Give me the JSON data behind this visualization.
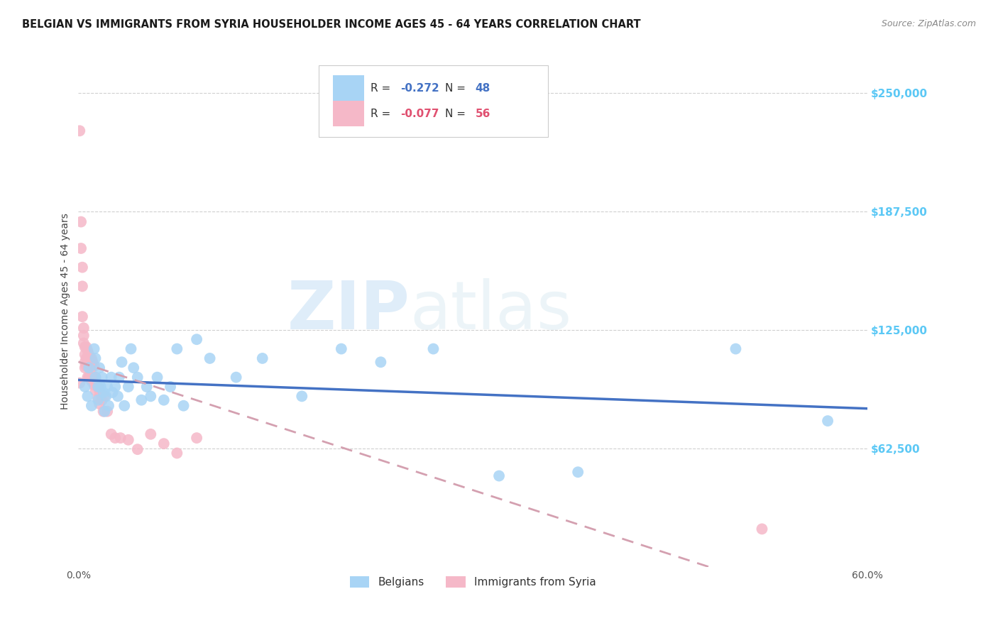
{
  "title": "BELGIAN VS IMMIGRANTS FROM SYRIA HOUSEHOLDER INCOME AGES 45 - 64 YEARS CORRELATION CHART",
  "source": "Source: ZipAtlas.com",
  "ylabel": "Householder Income Ages 45 - 64 years",
  "ytick_labels": [
    "$62,500",
    "$125,000",
    "$187,500",
    "$250,000"
  ],
  "ytick_values": [
    62500,
    125000,
    187500,
    250000
  ],
  "ymin": 0,
  "ymax": 270000,
  "xmin": 0.0,
  "xmax": 0.6,
  "legend_r1": "R = ",
  "legend_r1_val": "-0.272",
  "legend_n1": "   N = ",
  "legend_n1_val": "48",
  "legend_r2": "R = ",
  "legend_r2_val": "-0.077",
  "legend_n2": "   N = ",
  "legend_n2_val": "56",
  "legend_group1": "Belgians",
  "legend_group2": "Immigrants from Syria",
  "watermark_zip": "ZIP",
  "watermark_atlas": "atlas",
  "color_blue": "#a8d4f5",
  "color_pink": "#f5b8c8",
  "color_line_blue": "#4472c4",
  "color_line_pink": "#d4a0b0",
  "right_tick_color": "#5bc8f5",
  "belgians_x": [
    0.005,
    0.007,
    0.008,
    0.01,
    0.012,
    0.013,
    0.013,
    0.015,
    0.015,
    0.016,
    0.017,
    0.018,
    0.019,
    0.02,
    0.021,
    0.022,
    0.023,
    0.025,
    0.026,
    0.028,
    0.03,
    0.031,
    0.033,
    0.035,
    0.038,
    0.04,
    0.042,
    0.045,
    0.048,
    0.052,
    0.055,
    0.06,
    0.065,
    0.07,
    0.075,
    0.08,
    0.09,
    0.1,
    0.12,
    0.14,
    0.17,
    0.2,
    0.23,
    0.27,
    0.32,
    0.38,
    0.5,
    0.57
  ],
  "belgians_y": [
    95000,
    90000,
    105000,
    85000,
    115000,
    100000,
    110000,
    95000,
    88000,
    105000,
    95000,
    100000,
    92000,
    82000,
    90000,
    95000,
    85000,
    100000,
    92000,
    95000,
    90000,
    100000,
    108000,
    85000,
    95000,
    115000,
    105000,
    100000,
    88000,
    95000,
    90000,
    100000,
    88000,
    95000,
    115000,
    85000,
    120000,
    110000,
    100000,
    110000,
    90000,
    115000,
    108000,
    115000,
    48000,
    50000,
    115000,
    77000
  ],
  "syria_x": [
    0.001,
    0.001,
    0.002,
    0.002,
    0.003,
    0.003,
    0.003,
    0.004,
    0.004,
    0.004,
    0.005,
    0.005,
    0.005,
    0.005,
    0.006,
    0.006,
    0.006,
    0.007,
    0.007,
    0.007,
    0.007,
    0.008,
    0.008,
    0.008,
    0.009,
    0.009,
    0.009,
    0.01,
    0.01,
    0.01,
    0.011,
    0.011,
    0.012,
    0.012,
    0.013,
    0.013,
    0.014,
    0.015,
    0.015,
    0.016,
    0.016,
    0.017,
    0.018,
    0.019,
    0.02,
    0.022,
    0.025,
    0.028,
    0.032,
    0.038,
    0.045,
    0.055,
    0.065,
    0.075,
    0.09,
    0.52
  ],
  "syria_y": [
    230000,
    97000,
    182000,
    168000,
    158000,
    148000,
    132000,
    126000,
    122000,
    118000,
    116000,
    112000,
    108000,
    105000,
    116000,
    110000,
    106000,
    114000,
    110000,
    106000,
    100000,
    112000,
    106000,
    100000,
    110000,
    106000,
    100000,
    110000,
    105000,
    98000,
    108000,
    100000,
    106000,
    96000,
    100000,
    93000,
    96000,
    95000,
    89000,
    93000,
    86000,
    91000,
    88000,
    82000,
    90000,
    82000,
    70000,
    68000,
    68000,
    67000,
    62000,
    70000,
    65000,
    60000,
    68000,
    20000
  ]
}
